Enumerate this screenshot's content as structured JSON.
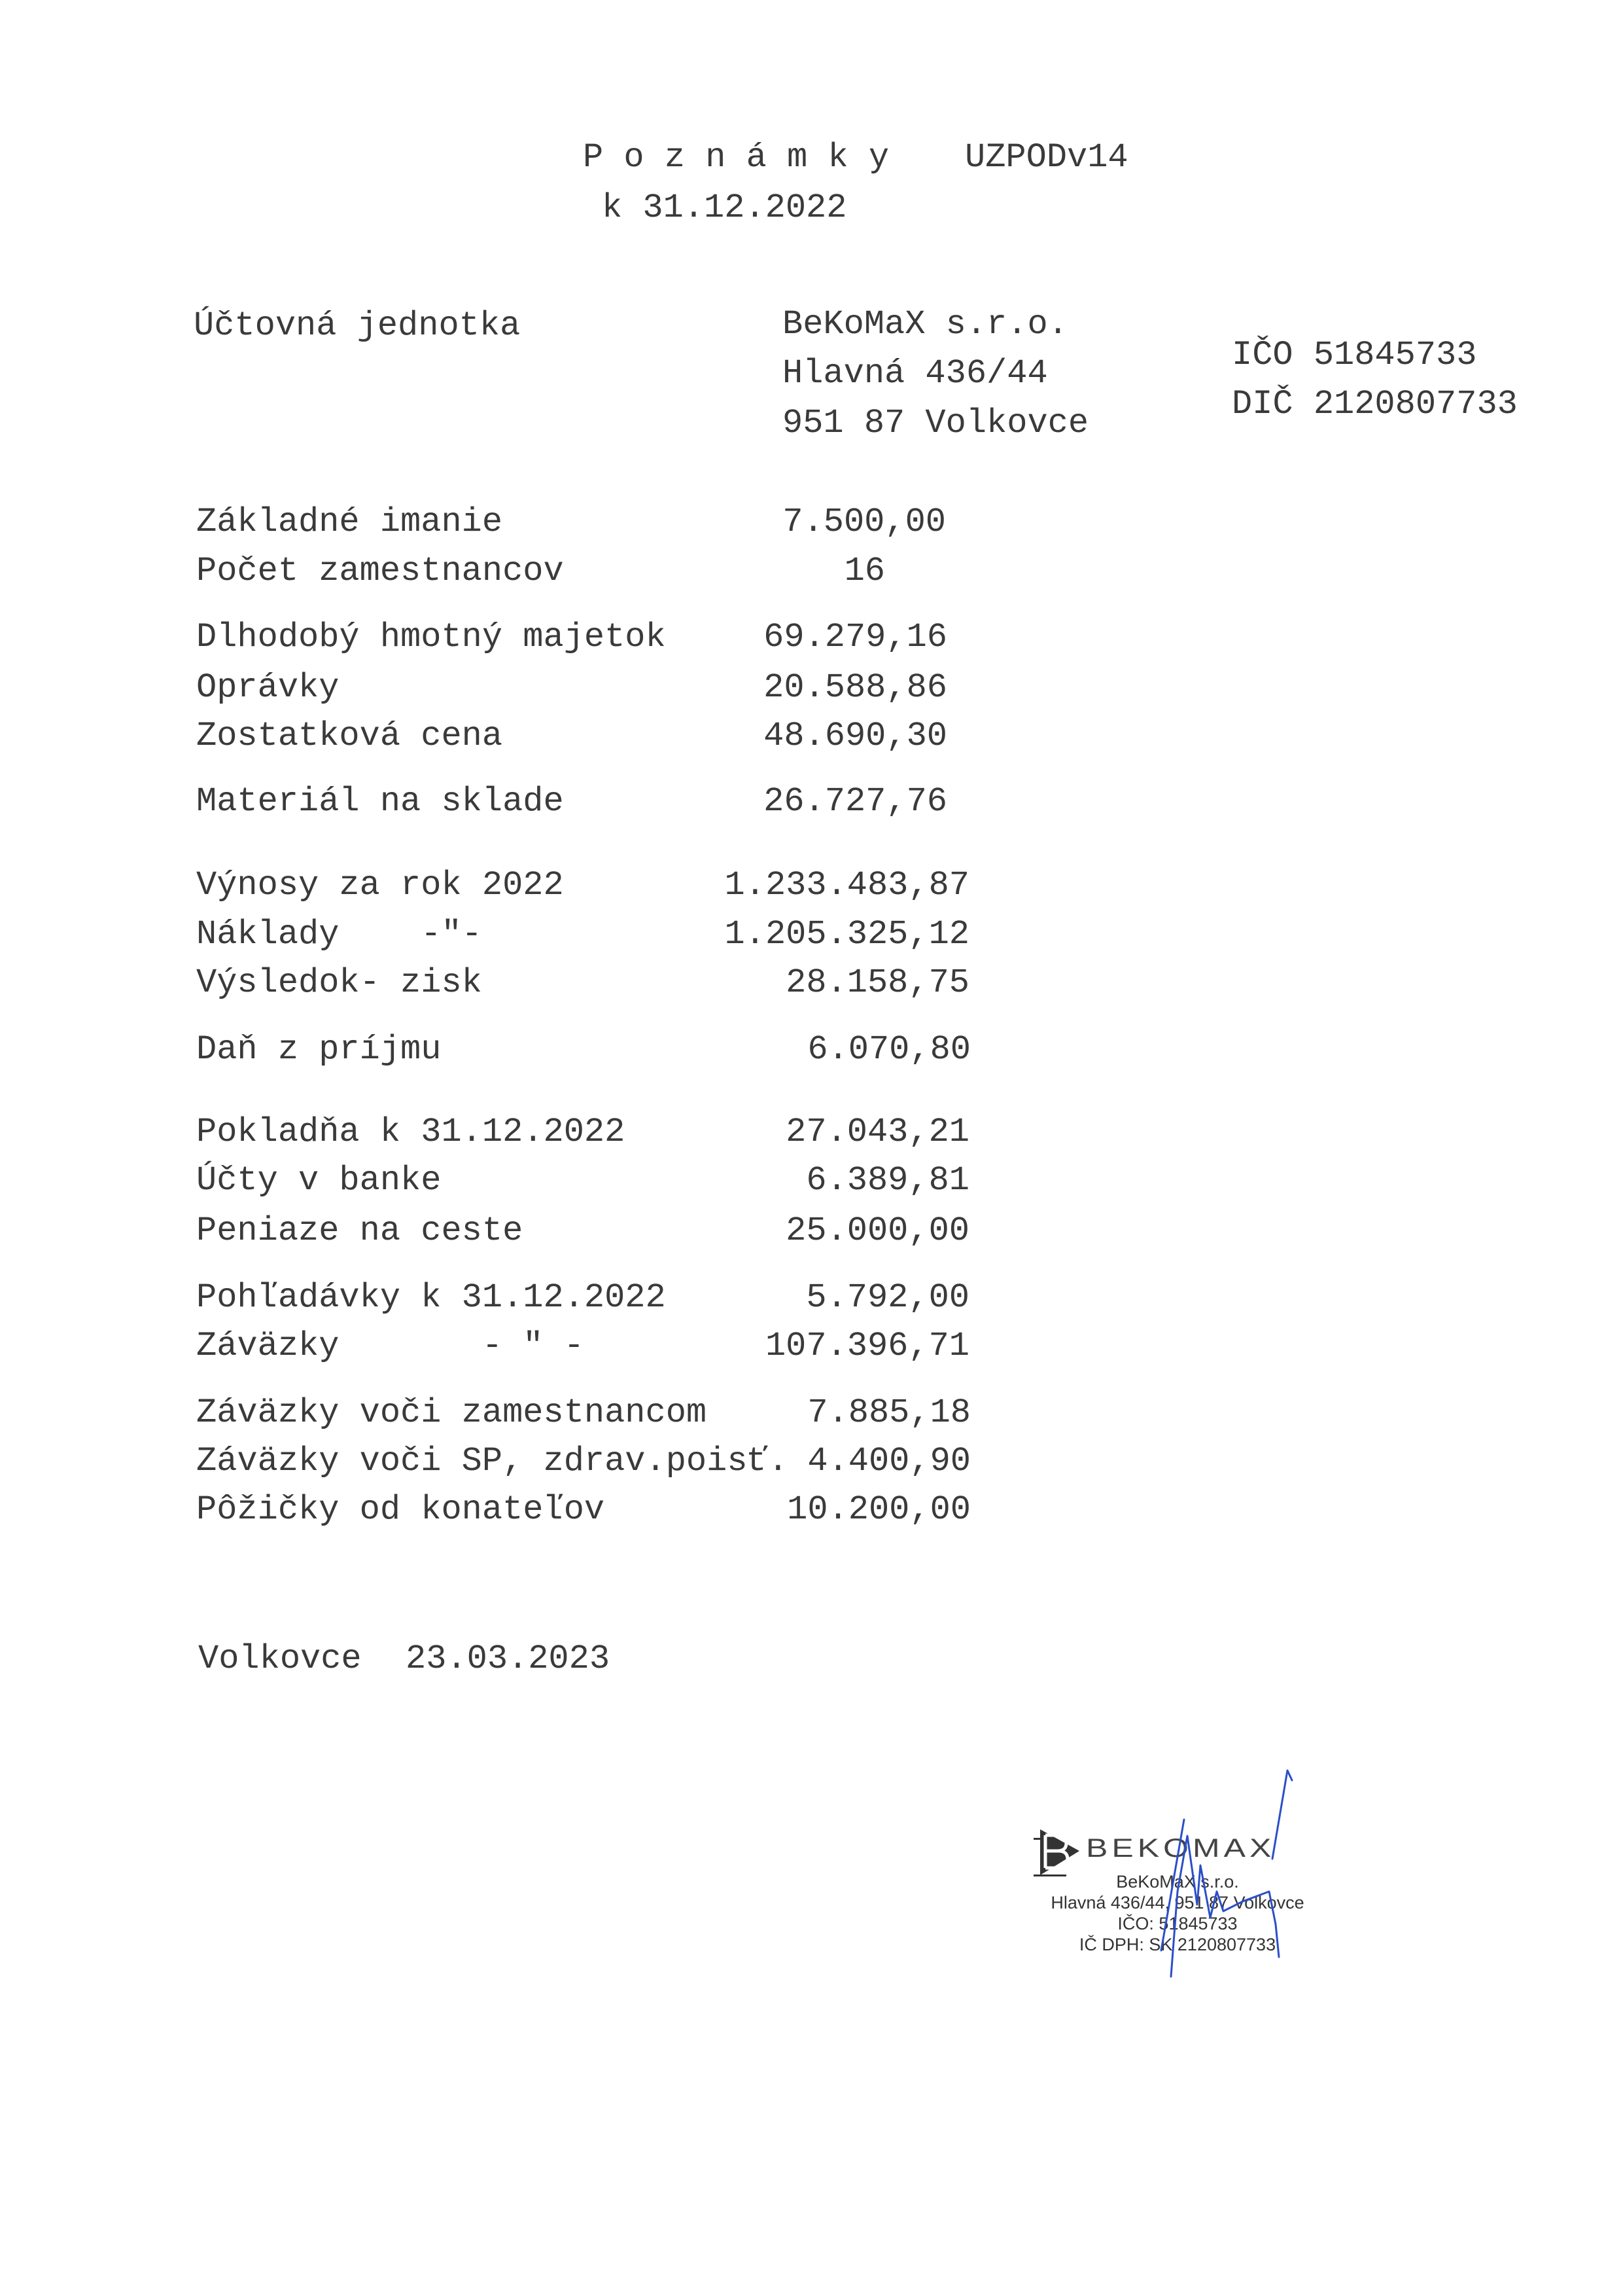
{
  "header": {
    "title": "P o z n á m k y",
    "form_code": "UZPODv14",
    "date_line": "k 31.12.2022"
  },
  "entity": {
    "label": "Účtovná jednotka",
    "name": "BeKoMaX s.r.o.",
    "street": "Hlavná 436/44",
    "city": "951 87 Volkovce",
    "ico": "IČO 51845733",
    "dic": "DIČ 2120807733"
  },
  "rows": [
    {
      "label": "Základné imanie",
      "value": "7.500,00"
    },
    {
      "label": "Počet zamestnancov",
      "value": "16"
    },
    {
      "label": "Dlhodobý hmotný majetok",
      "value": "69.279,16"
    },
    {
      "label": "Oprávky",
      "value": "20.588,86"
    },
    {
      "label": "Zostatková cena",
      "value": "48.690,30"
    },
    {
      "label": "Materiál na sklade",
      "value": "26.727,76"
    },
    {
      "label": "Výnosy za rok 2022",
      "value": "1.233.483,87"
    },
    {
      "label": "Náklady    -\"-",
      "value": "1.205.325,12"
    },
    {
      "label": "Výsledok- zisk",
      "value": "28.158,75"
    },
    {
      "label": "Daň z príjmu",
      "value": "6.070,80"
    },
    {
      "label": "Pokladňa k 31.12.2022",
      "value": "27.043,21"
    },
    {
      "label": "Účty v banke",
      "value": "6.389,81"
    },
    {
      "label": "Peniaze na ceste",
      "value": "25.000,00"
    },
    {
      "label": "Pohľadávky k 31.12.2022",
      "value": "5.792,00"
    },
    {
      "label": "Záväzky       - \" -",
      "value": "107.396,71"
    },
    {
      "label": "Záväzky voči zamestnancom",
      "value": "7.885,18"
    },
    {
      "label": "Záväzky voči SP, zdrav.poisť.",
      "value": "4.400,90"
    },
    {
      "label": "Pôžičky od konateľov",
      "value": "10.200,00"
    }
  ],
  "footer": {
    "place": "Volkovce",
    "date": "23.03.2023"
  },
  "stamp": {
    "brand": "BEKOMAX",
    "name": "BeKoMaX s.r.o.",
    "address": "Hlavná 436/44, 951 87 Volkovce",
    "ico": "IČO: 51845733",
    "ic_dph": "IČ DPH: SK 2120807733"
  },
  "colors": {
    "ink": "#3a3a3a",
    "signature": "#2b4fc9"
  }
}
